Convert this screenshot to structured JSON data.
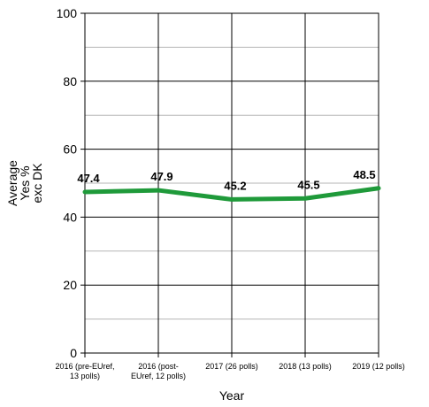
{
  "chart_data": {
    "type": "line",
    "title": "",
    "xlabel": "Year",
    "ylabel": [
      "Average",
      "Yes %",
      "exc DK"
    ],
    "categories": [
      [
        "2016 (pre-EUref,",
        "13 polls)"
      ],
      [
        "2016 (post-",
        "EUref, 12 polls)"
      ],
      [
        "2017 (26 polls)"
      ],
      [
        "2018 (13 polls)"
      ],
      [
        "2019 (12 polls)"
      ]
    ],
    "series": [
      {
        "values": [
          47.4,
          47.9,
          45.2,
          45.5,
          48.5
        ],
        "data_labels": [
          "47.4",
          "47.9",
          "45.2",
          "45.5",
          "48.5"
        ]
      }
    ],
    "ylim": [
      0,
      100
    ],
    "yticks": [
      0,
      20,
      40,
      60,
      80,
      100
    ],
    "minor_gridlines_every": 10,
    "grid": true,
    "legend": "none",
    "line_color": "#1f9a3a"
  }
}
